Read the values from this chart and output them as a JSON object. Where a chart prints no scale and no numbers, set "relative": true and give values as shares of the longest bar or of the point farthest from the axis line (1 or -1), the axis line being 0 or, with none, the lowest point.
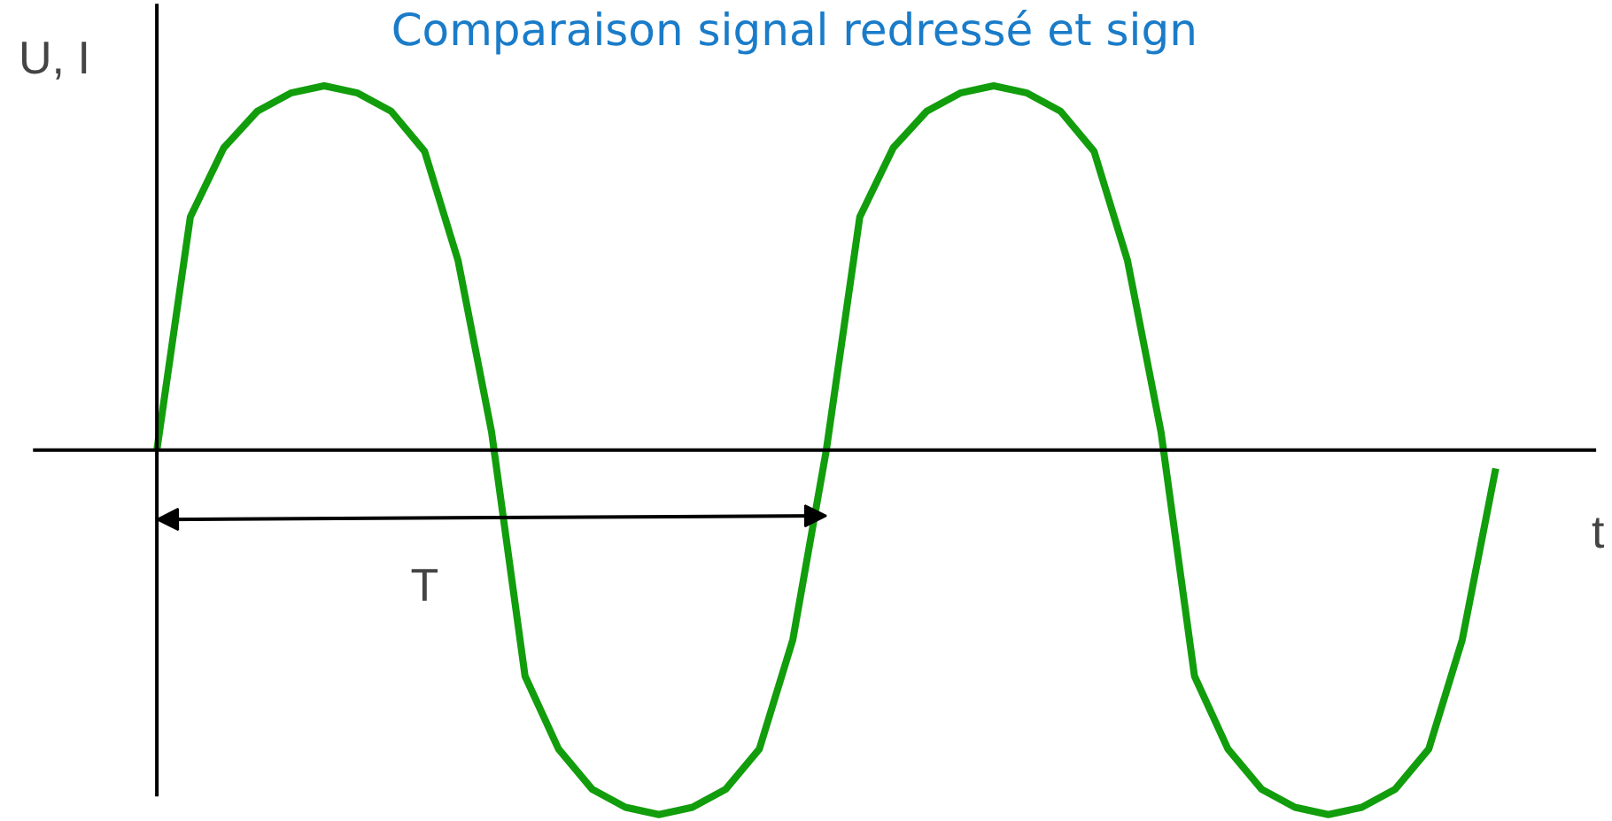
{
  "chart_data": {
    "type": "line",
    "relative": true,
    "title": "Comparaison signal redressé et sign",
    "xlabel": "t",
    "ylabel": "U, I",
    "annotations": [
      "T"
    ],
    "categories": [
      null,
      null,
      null,
      null,
      null,
      null,
      null,
      null,
      null,
      null,
      null,
      null,
      null,
      null,
      null,
      null,
      null,
      null,
      null,
      null,
      null,
      null,
      null,
      null,
      null,
      null,
      null,
      null,
      null,
      null,
      null,
      null,
      null,
      null,
      null,
      null,
      null,
      null,
      null,
      null,
      null
    ],
    "series": [
      {
        "color": "#129d0c",
        "values": [
          0,
          0.64,
          0.83,
          0.93,
          0.98,
          1.0,
          0.98,
          0.93,
          0.82,
          0.52,
          0.05,
          -0.62,
          -0.82,
          -0.93,
          -0.98,
          -1.0,
          -0.98,
          -0.93,
          -0.82,
          -0.52,
          0,
          0.64,
          0.83,
          0.93,
          0.98,
          1.0,
          0.98,
          0.93,
          0.82,
          0.52,
          0.05,
          -0.62,
          -0.82,
          -0.93,
          -0.98,
          -1.0,
          -0.98,
          -0.93,
          -0.82,
          -0.52,
          -0.05
        ]
      }
    ],
    "grid": false,
    "marker": "none",
    "line_style": "solid"
  }
}
